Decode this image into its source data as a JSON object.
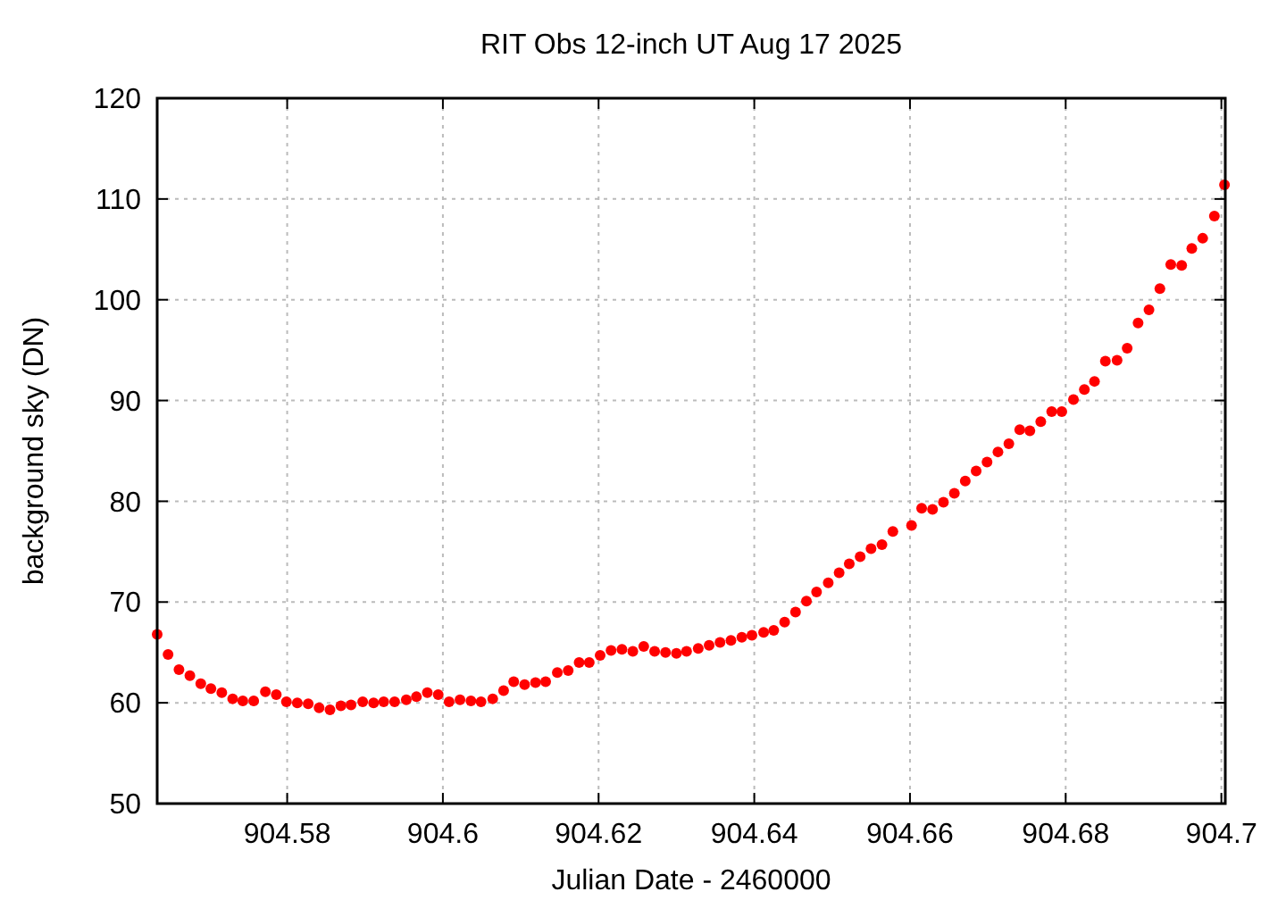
{
  "chart_data": {
    "type": "scatter",
    "title": "RIT Obs 12-inch UT Aug 17 2025",
    "xlabel": "Julian Date - 2460000",
    "ylabel": "background sky (DN)",
    "xlim": [
      904.5633,
      904.7005
    ],
    "xticks": [
      904.58,
      904.6,
      904.62,
      904.64,
      904.66,
      904.68,
      904.7
    ],
    "ylim": [
      50,
      120
    ],
    "yticks": [
      50,
      60,
      70,
      80,
      90,
      100,
      110,
      120
    ],
    "grid": true,
    "marker": "circle",
    "series": [
      {
        "color": "#ff0000",
        "x": [
          904.5633,
          904.5647,
          904.5661,
          904.5675,
          904.5689,
          904.5702,
          904.5716,
          904.573,
          904.5743,
          904.5757,
          904.5772,
          904.5786,
          904.5799,
          904.5813,
          904.5827,
          904.5841,
          904.5855,
          904.5869,
          904.5882,
          904.5897,
          904.5911,
          904.5924,
          904.5938,
          904.5953,
          904.5966,
          904.598,
          904.5994,
          904.6008,
          904.6022,
          904.6036,
          904.6049,
          904.6064,
          904.6078,
          904.6091,
          904.6105,
          904.6119,
          904.6132,
          904.6147,
          904.6161,
          904.6175,
          904.6188,
          904.6202,
          904.6216,
          904.623,
          904.6244,
          904.6258,
          904.6272,
          904.6286,
          904.63,
          904.6313,
          904.6328,
          904.6342,
          904.6356,
          904.637,
          904.6384,
          904.6397,
          904.6412,
          904.6425,
          904.6439,
          904.6453,
          904.6467,
          904.648,
          904.6495,
          904.6509,
          904.6522,
          904.6536,
          904.655,
          904.6564,
          904.6578,
          904.6602,
          904.6615,
          904.6629,
          904.6643,
          904.6657,
          904.6671,
          904.6685,
          904.6699,
          904.6713,
          904.6727,
          904.6741,
          904.6754,
          904.6768,
          904.6782,
          904.6795,
          904.681,
          904.6824,
          904.6837,
          904.6851,
          904.6866,
          904.6879,
          904.6893,
          904.6907,
          904.6921,
          904.6935,
          904.6949,
          904.6962,
          904.6976,
          904.6991,
          904.7004
        ],
        "values": [
          66.8,
          64.8,
          63.3,
          62.7,
          61.9,
          61.4,
          61.0,
          60.4,
          60.2,
          60.2,
          61.1,
          60.8,
          60.1,
          60.0,
          59.9,
          59.5,
          59.3,
          59.7,
          59.8,
          60.1,
          60.0,
          60.1,
          60.1,
          60.3,
          60.6,
          61.0,
          60.8,
          60.1,
          60.3,
          60.2,
          60.1,
          60.4,
          61.2,
          62.1,
          61.8,
          62.0,
          62.1,
          63.0,
          63.2,
          64.0,
          64.0,
          64.7,
          65.2,
          65.3,
          65.1,
          65.6,
          65.1,
          65.0,
          64.9,
          65.1,
          65.4,
          65.7,
          66.0,
          66.2,
          66.5,
          66.7,
          67.0,
          67.2,
          68.0,
          69.0,
          70.1,
          71.0,
          71.9,
          72.9,
          73.8,
          74.5,
          75.3,
          75.7,
          77.0,
          77.6,
          79.3,
          79.2,
          79.9,
          80.8,
          82.0,
          83.0,
          83.9,
          84.9,
          85.7,
          87.1,
          87.0,
          87.9,
          88.9,
          88.9,
          90.1,
          91.1,
          91.9,
          93.9,
          94.0,
          95.2,
          97.7,
          99.0,
          101.1,
          103.5,
          103.4,
          105.1,
          106.1,
          108.3,
          111.4
        ]
      }
    ]
  }
}
